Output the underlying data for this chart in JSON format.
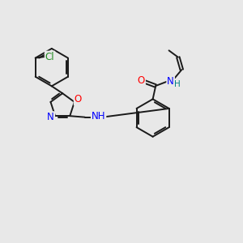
{
  "background_color": "#e8e8e8",
  "bond_color": "#1a1a1a",
  "bond_width": 1.4,
  "atom_colors": {
    "Cl": "#228B22",
    "O": "#FF0000",
    "N": "#0000FF",
    "H": "#008080",
    "C": "#1a1a1a"
  },
  "font_size": 8.5
}
